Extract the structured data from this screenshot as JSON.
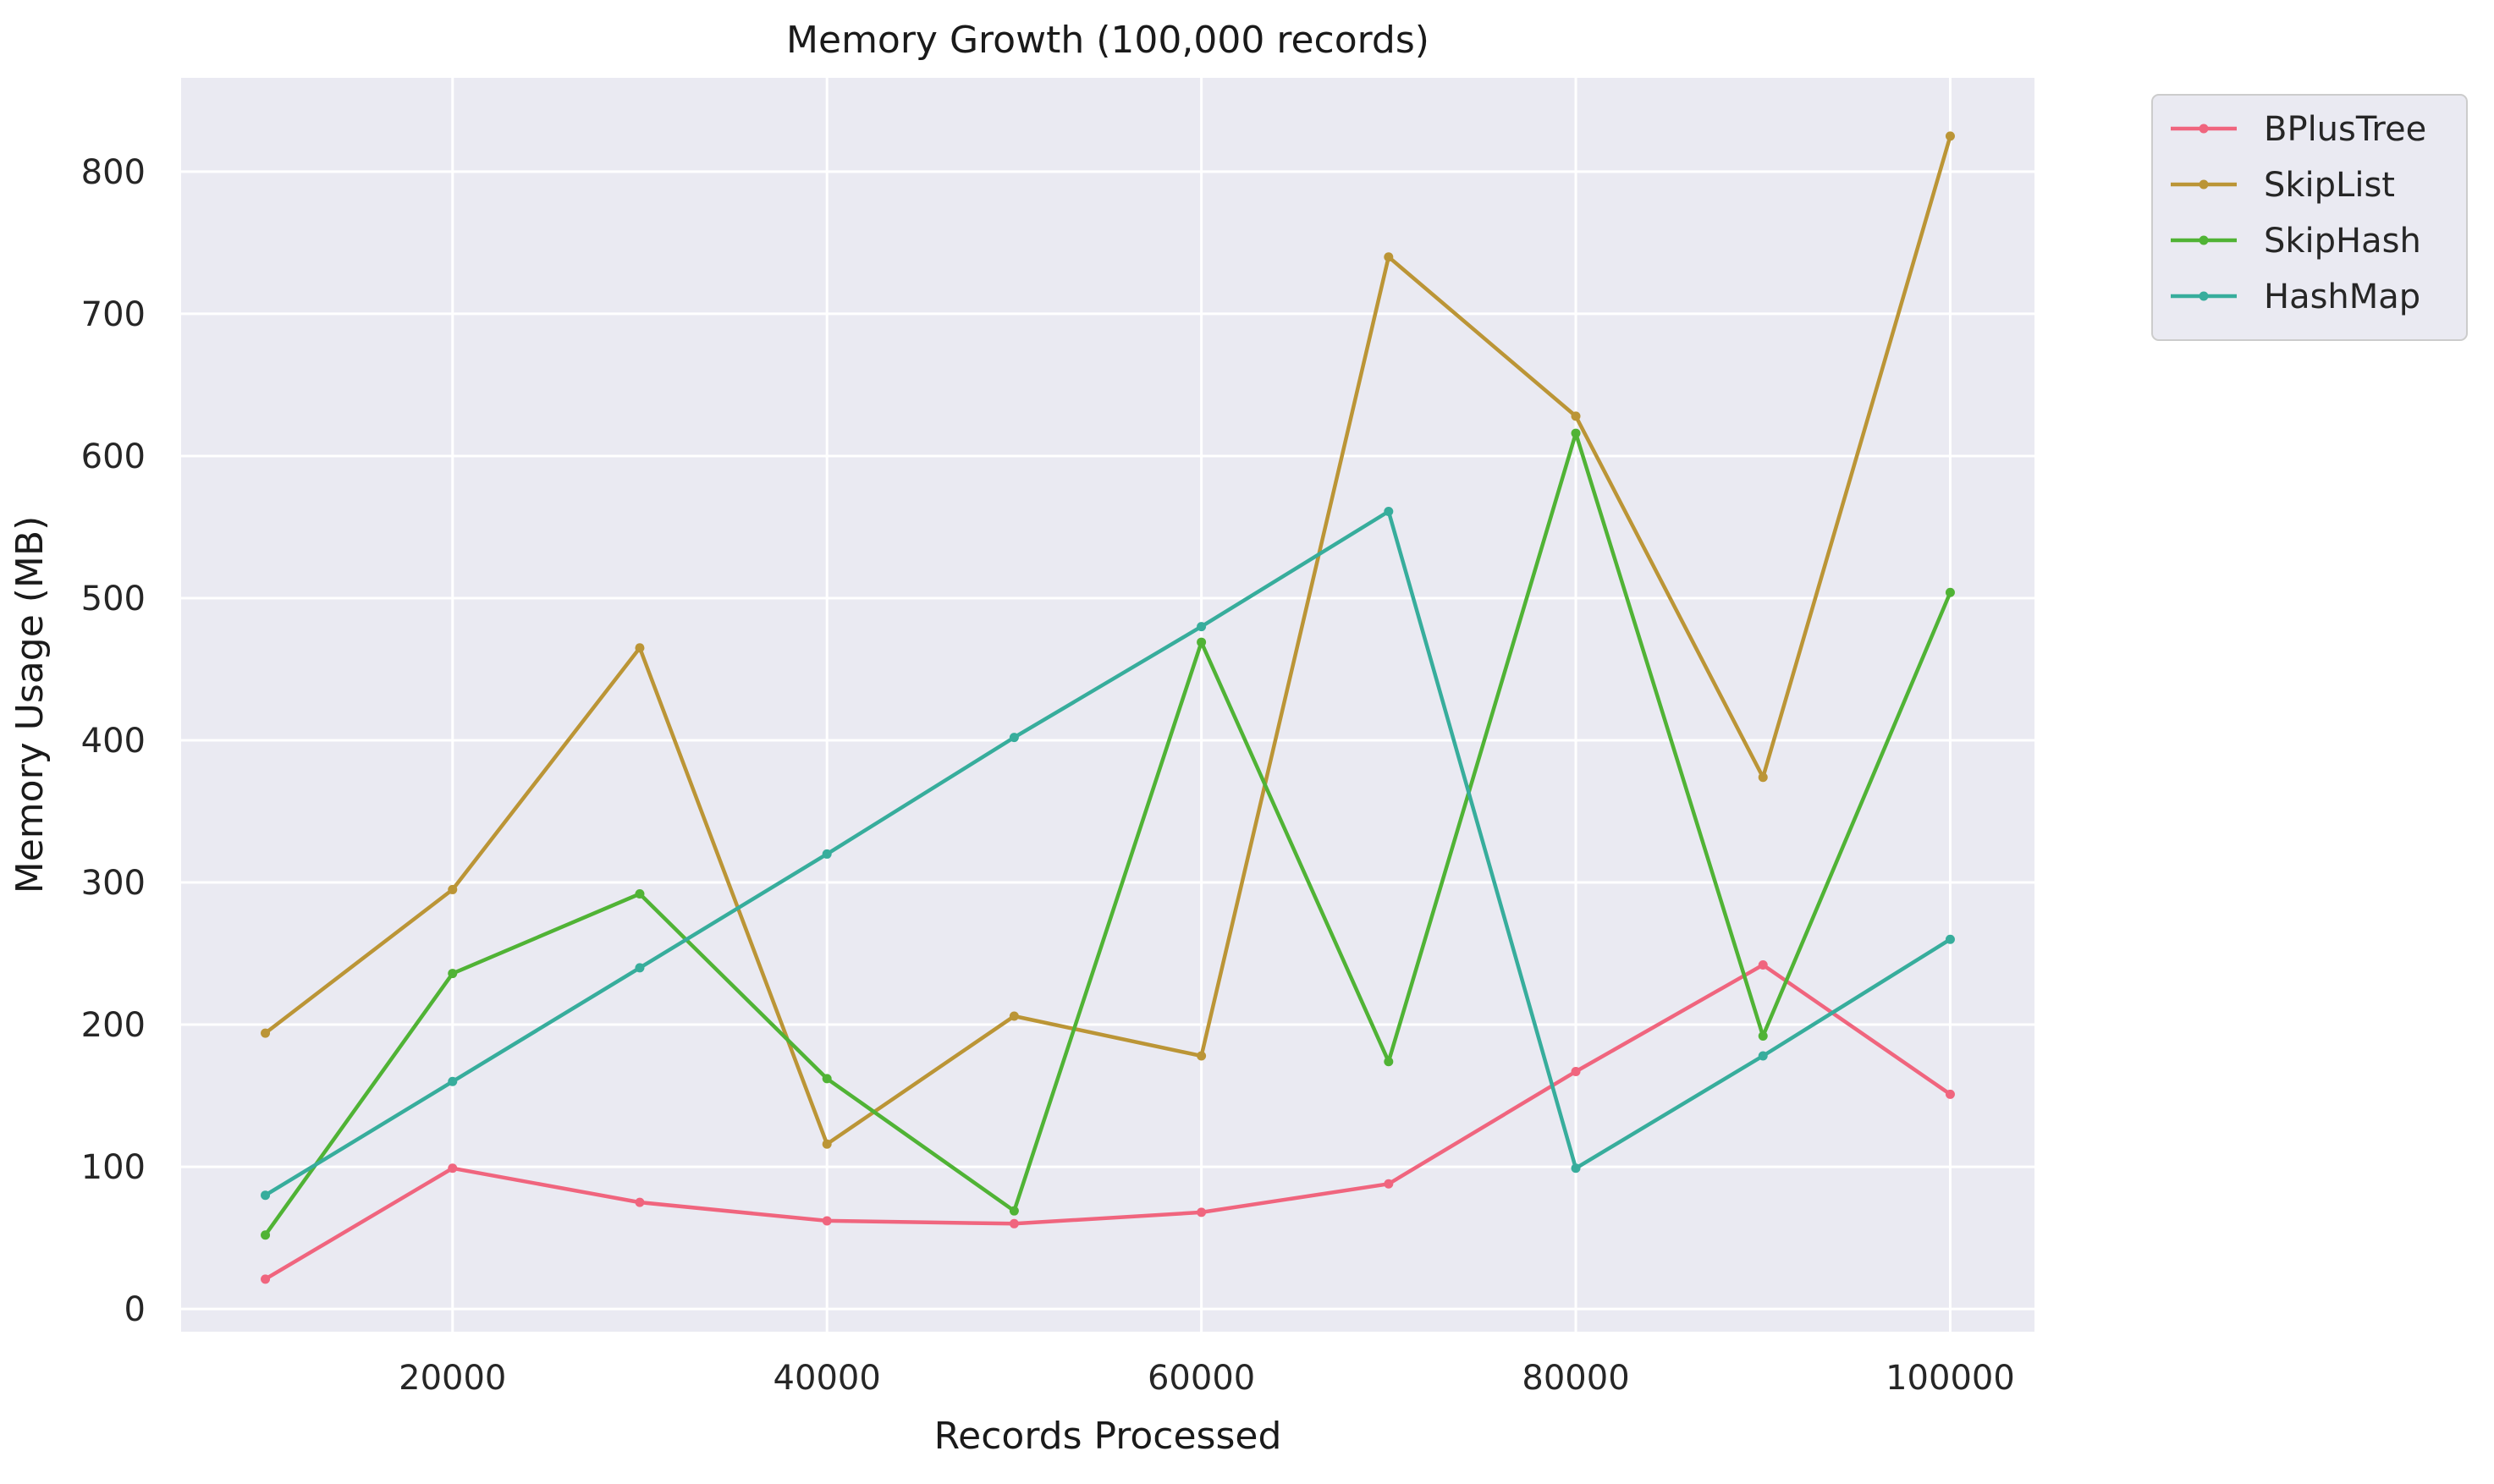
{
  "chart_data": {
    "type": "line",
    "title": "Memory Growth (100,000 records)",
    "xlabel": "Records Processed",
    "ylabel": "Memory Usage (MB)",
    "x": [
      10000,
      20000,
      30000,
      40000,
      50000,
      60000,
      70000,
      80000,
      90000,
      100000
    ],
    "xlim": [
      5500,
      104500
    ],
    "ylim": [
      -16,
      866
    ],
    "x_ticks": [
      20000,
      40000,
      60000,
      80000,
      100000
    ],
    "y_ticks": [
      0,
      100,
      200,
      300,
      400,
      500,
      600,
      700,
      800
    ],
    "grid": true,
    "legend_position": "outside-top-right",
    "background": "#eaeaf2",
    "series": [
      {
        "name": "BPlusTree",
        "color": "#f0657e",
        "values": [
          21,
          99,
          75,
          62,
          60,
          68,
          88,
          167,
          242,
          151
        ]
      },
      {
        "name": "SkipList",
        "color": "#bb9536",
        "values": [
          194,
          295,
          465,
          116,
          206,
          178,
          740,
          628,
          374,
          825
        ]
      },
      {
        "name": "SkipHash",
        "color": "#50b335",
        "values": [
          52,
          236,
          292,
          162,
          69,
          469,
          174,
          616,
          192,
          504
        ]
      },
      {
        "name": "HashMap",
        "color": "#37ad9c",
        "values": [
          80,
          160,
          240,
          320,
          402,
          480,
          561,
          99,
          178,
          260
        ]
      }
    ]
  }
}
